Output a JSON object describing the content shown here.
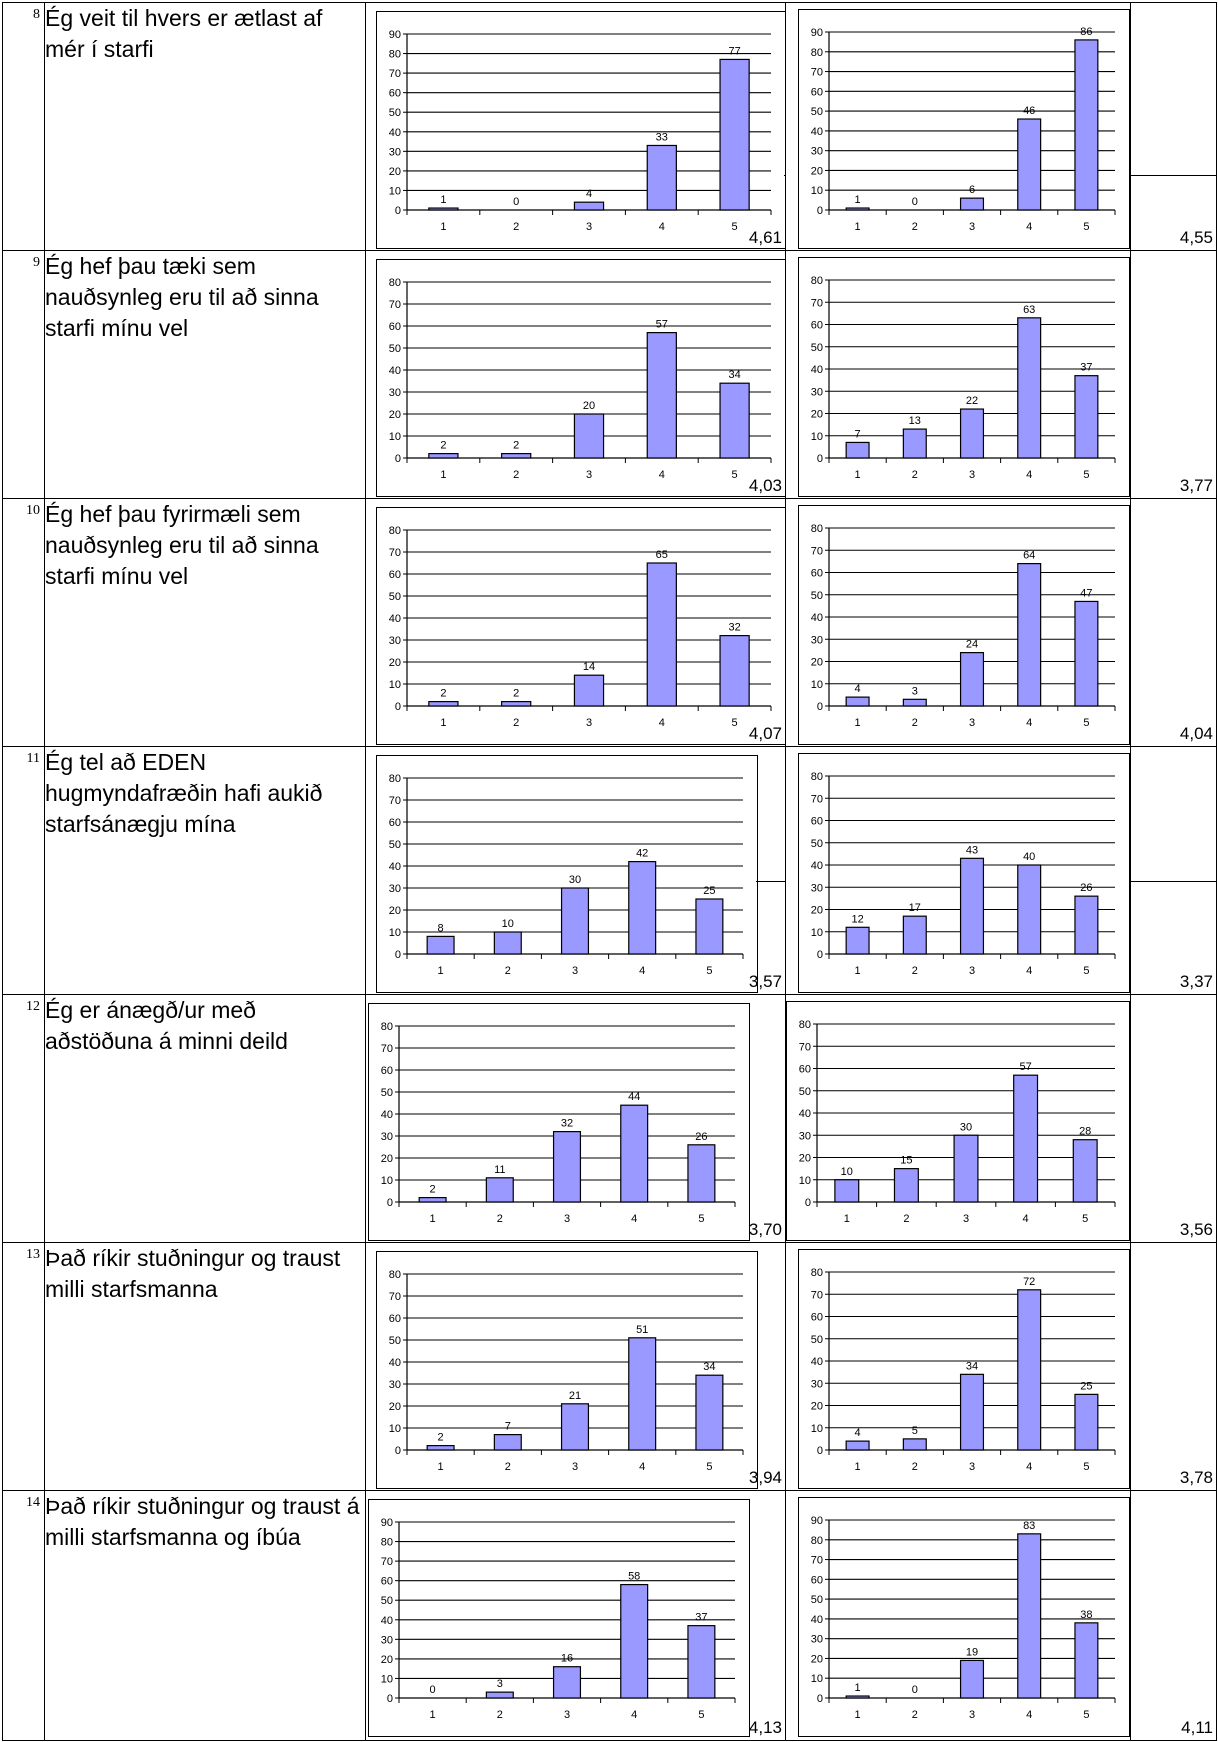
{
  "rows": [
    {
      "number": "8",
      "question": "Ég veit til hvers er ætlast af mér í starfi",
      "mean_a": "4,61",
      "mean_b": "4,55"
    },
    {
      "number": "9",
      "question": "Ég hef þau tæki sem nauðsynleg eru til að sinna starfi mínu vel",
      "mean_a": "4,03",
      "mean_b": "3,77"
    },
    {
      "number": "10",
      "question": "Ég hef þau fyrirmæli sem nauðsynleg eru til að sinna starfi mínu vel",
      "mean_a": "4,07",
      "mean_b": "4,04"
    },
    {
      "number": "11",
      "question": "Ég tel að EDEN hugmyndafræðin hafi aukið starfsánægju mína",
      "mean_a": "3,57",
      "mean_b": "3,37"
    },
    {
      "number": "12",
      "question": "Ég er ánægð/ur með aðstöðuna á minni deild",
      "mean_a": "3,70",
      "mean_b": "3,56"
    },
    {
      "number": "13",
      "question": "Það ríkir stuðningur og traust milli starfsmanna",
      "mean_a": "3,94",
      "mean_b": "3,78"
    },
    {
      "number": "14",
      "question": "Það ríkir stuðningur og traust á milli starfsmanna og íbúa",
      "mean_a": "4,13",
      "mean_b": "4,11"
    }
  ],
  "colors": {
    "bar_fill": "#9999ff",
    "bar_stroke": "#000000",
    "grid": "#000000",
    "text": "#000000"
  },
  "chart_data": [
    {
      "type": "bar",
      "row": "8",
      "column": "a",
      "categories": [
        "1",
        "2",
        "3",
        "4",
        "5"
      ],
      "values": [
        1,
        0,
        4,
        33,
        77
      ],
      "ylim": [
        0,
        90
      ],
      "ytick_step": 10,
      "grid": true,
      "data_labels": true
    },
    {
      "type": "bar",
      "row": "8",
      "column": "b",
      "categories": [
        "1",
        "2",
        "3",
        "4",
        "5"
      ],
      "values": [
        1,
        0,
        6,
        46,
        86
      ],
      "ylim": [
        0,
        90
      ],
      "ytick_step": 10,
      "grid": true,
      "data_labels": true
    },
    {
      "type": "bar",
      "row": "9",
      "column": "a",
      "categories": [
        "1",
        "2",
        "3",
        "4",
        "5"
      ],
      "values": [
        2,
        2,
        20,
        57,
        34
      ],
      "ylim": [
        0,
        80
      ],
      "ytick_step": 10,
      "grid": true,
      "data_labels": true
    },
    {
      "type": "bar",
      "row": "9",
      "column": "b",
      "categories": [
        "1",
        "2",
        "3",
        "4",
        "5"
      ],
      "values": [
        7,
        13,
        22,
        63,
        37
      ],
      "ylim": [
        0,
        80
      ],
      "ytick_step": 10,
      "grid": true,
      "data_labels": true
    },
    {
      "type": "bar",
      "row": "10",
      "column": "a",
      "categories": [
        "1",
        "2",
        "3",
        "4",
        "5"
      ],
      "values": [
        2,
        2,
        14,
        65,
        32
      ],
      "ylim": [
        0,
        80
      ],
      "ytick_step": 10,
      "grid": true,
      "data_labels": true
    },
    {
      "type": "bar",
      "row": "10",
      "column": "b",
      "categories": [
        "1",
        "2",
        "3",
        "4",
        "5"
      ],
      "values": [
        4,
        3,
        24,
        64,
        47
      ],
      "ylim": [
        0,
        80
      ],
      "ytick_step": 10,
      "grid": true,
      "data_labels": true
    },
    {
      "type": "bar",
      "row": "11",
      "column": "a",
      "categories": [
        "1",
        "2",
        "3",
        "4",
        "5"
      ],
      "values": [
        8,
        10,
        30,
        42,
        25
      ],
      "ylim": [
        0,
        80
      ],
      "ytick_step": 10,
      "grid": true,
      "data_labels": true
    },
    {
      "type": "bar",
      "row": "11",
      "column": "b",
      "categories": [
        "1",
        "2",
        "3",
        "4",
        "5"
      ],
      "values": [
        12,
        17,
        43,
        40,
        26
      ],
      "ylim": [
        0,
        80
      ],
      "ytick_step": 10,
      "grid": true,
      "data_labels": true
    },
    {
      "type": "bar",
      "row": "12",
      "column": "a",
      "categories": [
        "1",
        "2",
        "3",
        "4",
        "5"
      ],
      "values": [
        2,
        11,
        32,
        44,
        26
      ],
      "ylim": [
        0,
        80
      ],
      "ytick_step": 10,
      "grid": true,
      "data_labels": true
    },
    {
      "type": "bar",
      "row": "12",
      "column": "b",
      "categories": [
        "1",
        "2",
        "3",
        "4",
        "5"
      ],
      "values": [
        10,
        15,
        30,
        57,
        28
      ],
      "ylim": [
        0,
        80
      ],
      "ytick_step": 10,
      "grid": true,
      "data_labels": true
    },
    {
      "type": "bar",
      "row": "13",
      "column": "a",
      "categories": [
        "1",
        "2",
        "3",
        "4",
        "5"
      ],
      "values": [
        2,
        7,
        21,
        51,
        34
      ],
      "ylim": [
        0,
        80
      ],
      "ytick_step": 10,
      "grid": true,
      "data_labels": true
    },
    {
      "type": "bar",
      "row": "13",
      "column": "b",
      "categories": [
        "1",
        "2",
        "3",
        "4",
        "5"
      ],
      "values": [
        4,
        5,
        34,
        72,
        25
      ],
      "ylim": [
        0,
        80
      ],
      "ytick_step": 10,
      "grid": true,
      "data_labels": true
    },
    {
      "type": "bar",
      "row": "14",
      "column": "a",
      "categories": [
        "1",
        "2",
        "3",
        "4",
        "5"
      ],
      "values": [
        0,
        3,
        16,
        58,
        37
      ],
      "ylim": [
        0,
        90
      ],
      "ytick_step": 10,
      "grid": true,
      "data_labels": true
    },
    {
      "type": "bar",
      "row": "14",
      "column": "b",
      "categories": [
        "1",
        "2",
        "3",
        "4",
        "5"
      ],
      "values": [
        1,
        0,
        19,
        83,
        38
      ],
      "ylim": [
        0,
        90
      ],
      "ytick_step": 10,
      "grid": true,
      "data_labels": true
    }
  ]
}
